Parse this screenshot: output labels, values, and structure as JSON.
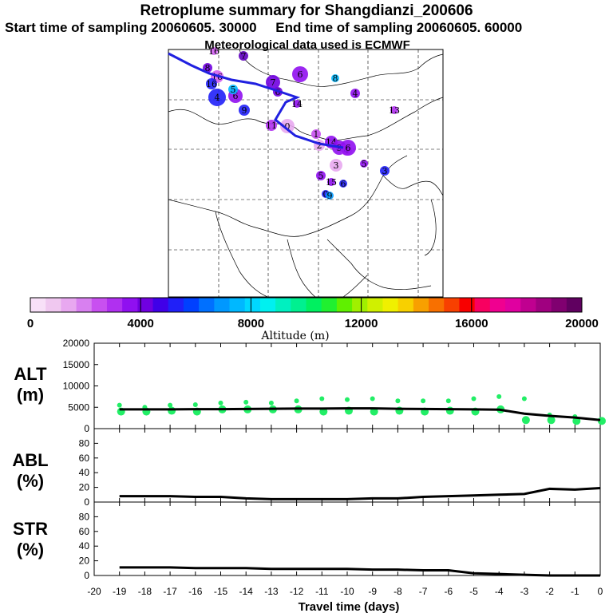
{
  "title": "Retroplume summary for Shangdianzi_200606",
  "subtitle_start": "Start time of sampling 20060605. 30000",
  "subtitle_end": "End time of sampling 20060605. 60000",
  "met_note": "Meteorological data used is ECMWF",
  "colorbar": {
    "label": "Altitude (m)",
    "ticks": [
      "0",
      "4000",
      "8000",
      "12000",
      "16000",
      "20000"
    ],
    "range": [
      0,
      20000
    ],
    "colors": [
      "#f8e0f8",
      "#f0c8f0",
      "#e8a8f0",
      "#d880f0",
      "#c850f0",
      "#b030f0",
      "#9010f0",
      "#7000e0",
      "#4000e8",
      "#2020f8",
      "#0040ff",
      "#0070ff",
      "#0098ff",
      "#00b8ff",
      "#00d8ff",
      "#00f0f0",
      "#00f0c0",
      "#00f090",
      "#00f060",
      "#20f030",
      "#60f000",
      "#a0f000",
      "#d0f000",
      "#f0f000",
      "#f8d000",
      "#f8a000",
      "#f87000",
      "#f84000",
      "#f80000",
      "#f80060",
      "#f00090",
      "#e000a0",
      "#c00090",
      "#a00080",
      "#800070",
      "#600060"
    ]
  },
  "map_labels": [
    {
      "t": "16",
      "c": "#d060f0"
    },
    {
      "t": "8",
      "c": "#7000e0"
    },
    {
      "t": "16",
      "c": "#d060f0"
    },
    {
      "t": "7",
      "c": "#6000c0"
    },
    {
      "t": "16",
      "c": "#2020f8"
    },
    {
      "t": "4",
      "c": "#2020f8"
    },
    {
      "t": "6",
      "c": "#9010f0"
    },
    {
      "t": "5",
      "c": "#00b8ff"
    },
    {
      "t": "7",
      "c": "#7000e0"
    },
    {
      "t": "6",
      "c": "#7000e0"
    },
    {
      "t": "14",
      "c": "#9010f0"
    },
    {
      "t": "6",
      "c": "#9010f0"
    },
    {
      "t": "9",
      "c": "#2020f8"
    },
    {
      "t": "8",
      "c": "#00b8ff"
    },
    {
      "t": "4",
      "c": "#9010f0"
    },
    {
      "t": "13",
      "c": "#b030f0"
    },
    {
      "t": "11",
      "c": "#b030f0"
    },
    {
      "t": "1",
      "c": "#c850f0"
    },
    {
      "t": "0",
      "c": "#e8a8f0"
    },
    {
      "t": "2",
      "c": "#e8a8f0"
    },
    {
      "t": "14",
      "c": "#9010f0"
    },
    {
      "t": "9",
      "c": "#9010f0"
    },
    {
      "t": "5",
      "c": "#9010f0"
    },
    {
      "t": "4",
      "c": "#d880f0"
    },
    {
      "t": "3",
      "c": "#e8a8f0"
    },
    {
      "t": "6",
      "c": "#9010f0"
    },
    {
      "t": "5",
      "c": "#9010f0"
    },
    {
      "t": "15",
      "c": "#9010f0"
    },
    {
      "t": "0",
      "c": "#2020f8"
    },
    {
      "t": "6",
      "c": "#2020f8"
    },
    {
      "t": "9",
      "c": "#0098ff"
    },
    {
      "t": "3",
      "c": "#2020f8"
    }
  ],
  "panels": {
    "alt": {
      "label_top": "ALT",
      "label_bottom": "(m)",
      "ticks": [
        "0",
        "5000",
        "10000",
        "15000",
        "20000"
      ],
      "range": [
        0,
        20000
      ]
    },
    "abl": {
      "label_top": "ABL",
      "label_bottom": "(%)",
      "ticks": [
        "0",
        "20",
        "40",
        "60",
        "80"
      ],
      "range": [
        0,
        100
      ]
    },
    "str": {
      "label_top": "STR",
      "label_bottom": "(%)",
      "ticks": [
        "0",
        "20",
        "40",
        "60",
        "80"
      ],
      "range": [
        0,
        100
      ]
    }
  },
  "x_axis": {
    "label": "Travel time (days)",
    "ticks": [
      "-20",
      "-19",
      "-18",
      "-17",
      "-16",
      "-15",
      "-14",
      "-13",
      "-12",
      "-11",
      "-10",
      "-9",
      "-8",
      "-7",
      "-6",
      "-5",
      "-4",
      "-3",
      "-2",
      "-1",
      "0"
    ],
    "range": [
      -20,
      0
    ]
  },
  "chart_data": {
    "type": "line",
    "title": "Retroplume summary for Shangdianzi_200606",
    "xlabel": "Travel time (days)",
    "x": [
      -19,
      -18,
      -17,
      -16,
      -15,
      -14,
      -13,
      -12,
      -11,
      -10,
      -9,
      -8,
      -7,
      -6,
      -5,
      -4,
      -3,
      -2,
      -1,
      0
    ],
    "series": [
      {
        "name": "ALT (m)",
        "values": [
          4500,
          4500,
          4500,
          4550,
          4550,
          4600,
          4650,
          4700,
          4700,
          4750,
          4750,
          4650,
          4600,
          4550,
          4500,
          4450,
          3500,
          3000,
          2600,
          2000
        ]
      },
      {
        "name": "ABL (%)",
        "values": [
          8,
          8,
          8,
          7,
          7,
          5,
          4,
          4,
          4,
          4,
          5,
          5,
          7,
          8,
          9,
          10,
          11,
          18,
          17,
          19
        ]
      },
      {
        "name": "STR (%)",
        "values": [
          11,
          11,
          11,
          10,
          10,
          10,
          9,
          9,
          9,
          9,
          8,
          8,
          7,
          7,
          3,
          2,
          1,
          0,
          0,
          0
        ]
      }
    ],
    "alt_clusters": [
      {
        "x": -19,
        "points": [
          5500,
          4000
        ]
      },
      {
        "x": -18,
        "points": [
          5000,
          4000
        ]
      },
      {
        "x": -17,
        "points": [
          5500,
          4200
        ]
      },
      {
        "x": -16,
        "points": [
          5600,
          4000
        ]
      },
      {
        "x": -15,
        "points": [
          6000,
          4500
        ]
      },
      {
        "x": -14,
        "points": [
          6200,
          4500
        ]
      },
      {
        "x": -13,
        "points": [
          6000,
          4500
        ]
      },
      {
        "x": -12,
        "points": [
          6500,
          4500
        ]
      },
      {
        "x": -11,
        "points": [
          7000,
          4000
        ]
      },
      {
        "x": -10,
        "points": [
          6800,
          4200
        ]
      },
      {
        "x": -9,
        "points": [
          7000,
          4000
        ]
      },
      {
        "x": -8,
        "points": [
          6500,
          4200
        ]
      },
      {
        "x": -7,
        "points": [
          6500,
          4000
        ]
      },
      {
        "x": -6,
        "points": [
          6500,
          4200
        ]
      },
      {
        "x": -5,
        "points": [
          7000,
          4000
        ]
      },
      {
        "x": -4,
        "points": [
          7500,
          4500
        ]
      },
      {
        "x": -3,
        "points": [
          7000,
          2000
        ]
      },
      {
        "x": -2,
        "points": [
          3200,
          2000
        ]
      },
      {
        "x": -1,
        "points": [
          2800,
          1800
        ]
      },
      {
        "x": 0,
        "points": [
          2000,
          1800
        ]
      }
    ]
  }
}
